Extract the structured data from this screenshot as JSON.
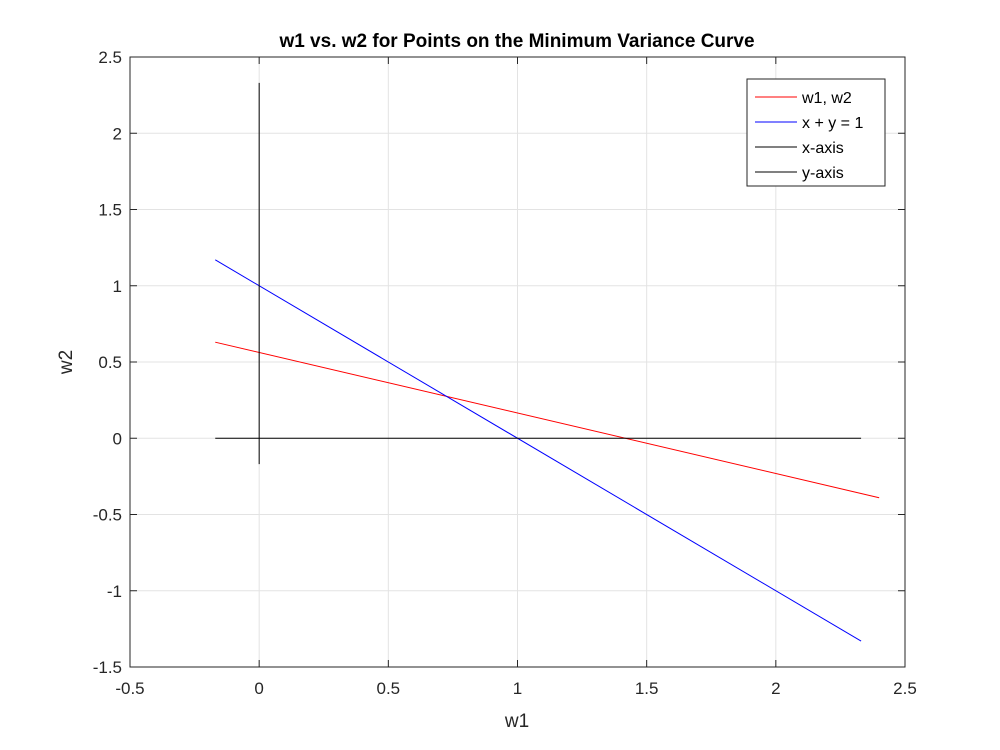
{
  "chart_data": {
    "type": "line",
    "title": "w1 vs. w2 for Points on the Minimum Variance Curve",
    "xlabel": "w1",
    "ylabel": "w2",
    "xlim": [
      -0.5,
      2.5
    ],
    "ylim": [
      -1.5,
      2.5
    ],
    "xticks": [
      "-0.5",
      "0",
      "0.5",
      "1",
      "1.5",
      "2",
      "2.5"
    ],
    "yticks": [
      "-1.5",
      "-1",
      "-0.5",
      "0",
      "0.5",
      "1",
      "1.5",
      "2",
      "2.5"
    ],
    "grid": true,
    "box": true,
    "legend_location": "top-right",
    "series": [
      {
        "name": "w1, w2",
        "color": "#ff0000",
        "x": [
          -0.17,
          2.4
        ],
        "y": [
          0.63,
          -0.39
        ]
      },
      {
        "name": "x + y = 1",
        "color": "#0000ff",
        "x": [
          -0.17,
          2.33
        ],
        "y": [
          1.17,
          -1.33
        ]
      },
      {
        "name": "x-axis",
        "color": "#000000",
        "x": [
          -0.17,
          2.33
        ],
        "y": [
          0,
          0
        ]
      },
      {
        "name": "y-axis",
        "color": "#000000",
        "x": [
          0,
          0
        ],
        "y": [
          -0.17,
          2.33
        ]
      }
    ]
  }
}
